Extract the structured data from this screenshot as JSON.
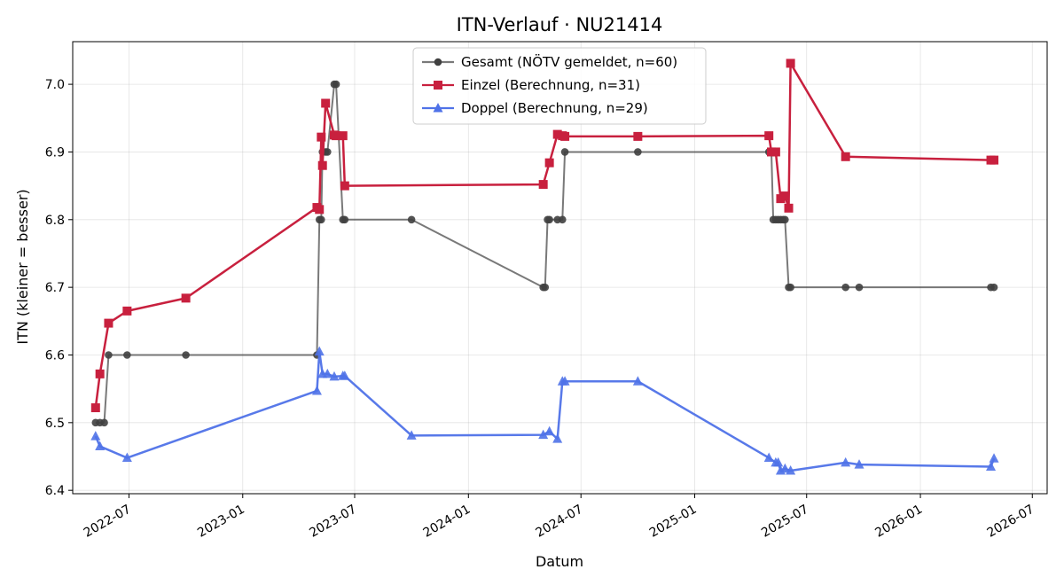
{
  "chart_data": {
    "type": "line",
    "title": "ITN-Verlauf · NU21414",
    "xlabel": "Datum",
    "ylabel": "ITN  (kleiner = besser)",
    "xlim": [
      "2022-04-01",
      "2026-07-25"
    ],
    "ylim": [
      6.395,
      7.063
    ],
    "y_ticks": [
      "6.4",
      "6.5",
      "6.6",
      "6.7",
      "6.8",
      "6.9",
      "7.0"
    ],
    "x_ticks": [
      "2022-07",
      "2023-01",
      "2023-07",
      "2024-01",
      "2024-07",
      "2025-01",
      "2025-07",
      "2026-01",
      "2026-07"
    ],
    "grid": true,
    "legend": "upper center",
    "series": [
      {
        "name": "Gesamt (NÖTV gemeldet, n=60)",
        "color": "#404040",
        "marker": "circle",
        "x": [
          "2022-05-08",
          "2022-05-15",
          "2022-05-22",
          "2022-05-29",
          "2022-06-28",
          "2022-10-01",
          "2023-05-01",
          "2023-05-05",
          "2023-05-08",
          "2023-05-10",
          "2023-05-15",
          "2023-05-18",
          "2023-05-29",
          "2023-06-01",
          "2023-06-12",
          "2023-06-15",
          "2023-10-01",
          "2024-05-01",
          "2024-05-04",
          "2024-05-08",
          "2024-05-11",
          "2024-05-24",
          "2024-06-01",
          "2024-06-05",
          "2024-10-01",
          "2025-05-01",
          "2025-05-05",
          "2025-05-08",
          "2025-05-12",
          "2025-05-16",
          "2025-05-20",
          "2025-05-24",
          "2025-05-27",
          "2025-06-02",
          "2025-06-05",
          "2025-09-02",
          "2025-09-24",
          "2026-04-25",
          "2026-04-30"
        ],
        "values": [
          6.5,
          6.5,
          6.5,
          6.6,
          6.6,
          6.6,
          6.6,
          6.8,
          6.8,
          6.9,
          6.9,
          6.9,
          7.0,
          7.0,
          6.8,
          6.8,
          6.8,
          6.7,
          6.7,
          6.8,
          6.8,
          6.8,
          6.8,
          6.9,
          6.9,
          6.9,
          6.9,
          6.8,
          6.8,
          6.8,
          6.8,
          6.8,
          6.8,
          6.7,
          6.7,
          6.7,
          6.7,
          6.7,
          6.7
        ]
      },
      {
        "name": "Einzel (Berechnung, n=31)",
        "color": "#c8203e",
        "marker": "square",
        "x": [
          "2022-05-08",
          "2022-05-15",
          "2022-05-29",
          "2022-06-28",
          "2022-10-01",
          "2023-05-01",
          "2023-05-05",
          "2023-05-08",
          "2023-05-10",
          "2023-05-15",
          "2023-05-29",
          "2023-06-01",
          "2023-06-12",
          "2023-06-15",
          "2024-05-01",
          "2024-05-11",
          "2024-05-24",
          "2024-06-01",
          "2024-06-05",
          "2024-10-01",
          "2025-05-01",
          "2025-05-05",
          "2025-05-12",
          "2025-05-20",
          "2025-05-27",
          "2025-06-02",
          "2025-06-05",
          "2025-09-02",
          "2026-04-25",
          "2026-04-30"
        ],
        "values": [
          6.522,
          6.572,
          6.647,
          6.665,
          6.684,
          6.818,
          6.815,
          6.922,
          6.88,
          6.972,
          6.925,
          6.924,
          6.924,
          6.85,
          6.852,
          6.884,
          6.926,
          6.924,
          6.923,
          6.923,
          6.924,
          6.9,
          6.9,
          6.831,
          6.835,
          6.817,
          7.031,
          6.893,
          6.888,
          6.888
        ]
      },
      {
        "name": "Doppel (Berechnung, n=29)",
        "color": "#4f72e8",
        "marker": "triangle",
        "x": [
          "2022-05-08",
          "2022-05-15",
          "2022-06-28",
          "2023-05-01",
          "2023-05-05",
          "2023-05-10",
          "2023-05-18",
          "2023-05-29",
          "2023-06-12",
          "2023-06-15",
          "2023-10-01",
          "2024-05-01",
          "2024-05-11",
          "2024-05-24",
          "2024-06-01",
          "2024-06-05",
          "2024-10-01",
          "2025-05-01",
          "2025-05-12",
          "2025-05-16",
          "2025-05-20",
          "2025-05-27",
          "2025-06-05",
          "2025-09-02",
          "2025-09-24",
          "2026-04-25",
          "2026-04-30"
        ],
        "values": [
          6.48,
          6.465,
          6.448,
          6.547,
          6.605,
          6.572,
          6.572,
          6.568,
          6.569,
          6.569,
          6.481,
          6.482,
          6.487,
          6.476,
          6.561,
          6.561,
          6.561,
          6.448,
          6.441,
          6.441,
          6.429,
          6.432,
          6.429,
          6.441,
          6.438,
          6.435,
          6.447
        ]
      }
    ]
  }
}
